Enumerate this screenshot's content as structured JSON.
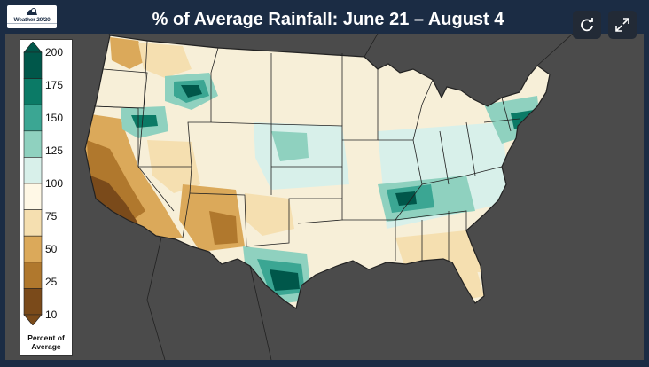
{
  "title": "% of Average Rainfall:  June 21 – August 4",
  "logo": {
    "text": "Weather 20/20",
    "icon": "weather2020-logo"
  },
  "controls": [
    {
      "name": "refresh-icon",
      "label": "refresh"
    },
    {
      "name": "expand-icon",
      "label": "expand"
    }
  ],
  "legend": {
    "caption_line1": "Percent of",
    "caption_line2": "Average",
    "ticks": [
      "200",
      "175",
      "150",
      "125",
      "100",
      "75",
      "50",
      "25",
      "10"
    ],
    "colors": [
      "#00574a",
      "#0b7a66",
      "#3ba693",
      "#8fd1bf",
      "#d8f0ea",
      "#fff8e6",
      "#f5dfb0",
      "#dba95a",
      "#b0782d",
      "#7a4a1a"
    ]
  },
  "palette": {
    "background": "#1b2c44",
    "land_base": "#f7efd8",
    "ocean": "#4b4b4b",
    "border": "#222222"
  }
}
